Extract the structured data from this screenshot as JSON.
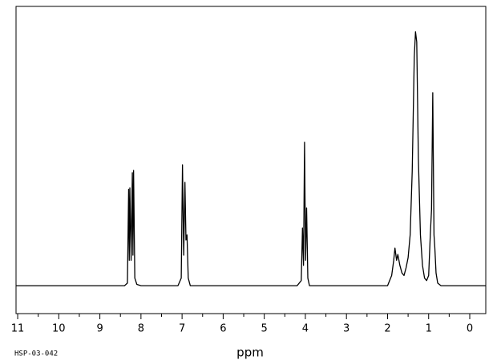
{
  "chart_data": {
    "type": "line",
    "xlabel": "ppm",
    "caption": "HSP-03-042",
    "x": [
      11.04,
      8.4,
      8.33,
      8.3,
      8.285,
      8.27,
      8.24,
      8.21,
      8.195,
      8.18,
      8.15,
      8.1,
      8.0,
      7.1,
      7.02,
      6.99,
      6.96,
      6.93,
      6.905,
      6.88,
      6.85,
      6.8,
      4.2,
      4.1,
      4.07,
      4.045,
      4.02,
      3.995,
      3.97,
      3.94,
      3.9,
      2.0,
      1.9,
      1.85,
      1.82,
      1.78,
      1.75,
      1.7,
      1.65,
      1.6,
      1.55,
      1.5,
      1.45,
      1.4,
      1.35,
      1.32,
      1.29,
      1.25,
      1.2,
      1.15,
      1.1,
      1.05,
      1.0,
      0.96,
      0.93,
      0.9,
      0.87,
      0.85,
      0.82,
      0.78,
      0.7,
      -0.39
    ],
    "values": [
      0,
      0,
      1,
      38,
      10,
      38.5,
      10,
      44.5,
      12,
      45.4,
      3,
      0.5,
      0,
      0,
      3,
      47.6,
      12,
      40.7,
      18,
      20,
      3,
      0,
      0,
      2,
      22.7,
      8,
      56.5,
      10,
      30.6,
      3,
      0,
      0,
      4,
      10,
      14.8,
      10,
      12.3,
      8,
      5,
      4,
      7,
      11,
      20,
      45,
      90,
      100,
      96,
      50,
      20,
      8,
      3,
      2,
      4,
      20,
      30,
      76,
      20,
      15,
      5,
      1,
      0,
      0
    ],
    "color": "#000000",
    "xlim": [
      11.04,
      -0.39
    ],
    "ylim": [
      -11,
      110
    ],
    "xticks": [
      11,
      10,
      9,
      8,
      7,
      6,
      5,
      4,
      3,
      2,
      1,
      0
    ],
    "x_minor_ticks": [
      10.5,
      9.5,
      8.5,
      7.5,
      6.5,
      5.5,
      4.5,
      3.5,
      2.5,
      1.5,
      0.5
    ]
  }
}
